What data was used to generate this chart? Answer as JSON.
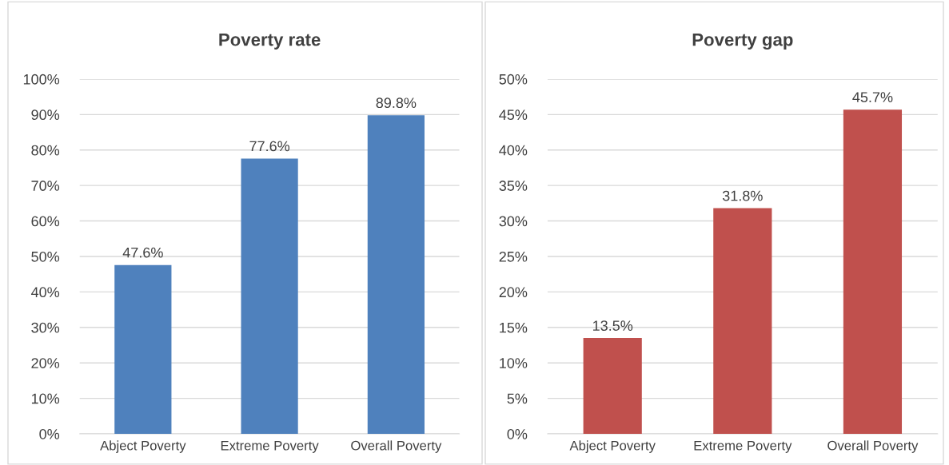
{
  "chart_data": [
    {
      "type": "bar",
      "title": "Poverty rate",
      "categories": [
        "Abject Poverty",
        "Extreme Poverty",
        "Overall Poverty"
      ],
      "series": [
        {
          "color": "#4f81bd",
          "values": [
            47.6,
            77.6,
            89.8
          ]
        }
      ],
      "value_labels": [
        "47.6%",
        "77.6%",
        "89.8%"
      ],
      "ylim": [
        0,
        100
      ],
      "yticks": [
        {
          "value": 0,
          "label": "0%"
        },
        {
          "value": 10,
          "label": "10%"
        },
        {
          "value": 20,
          "label": "20%"
        },
        {
          "value": 30,
          "label": "30%"
        },
        {
          "value": 40,
          "label": "40%"
        },
        {
          "value": 50,
          "label": "50%"
        },
        {
          "value": 60,
          "label": "60%"
        },
        {
          "value": 70,
          "label": "70%"
        },
        {
          "value": 80,
          "label": "80%"
        },
        {
          "value": 90,
          "label": "90%"
        },
        {
          "value": 100,
          "label": "100%"
        }
      ],
      "grid": "y",
      "legend": false
    },
    {
      "type": "bar",
      "title": "Poverty gap",
      "categories": [
        "Abject Poverty",
        "Extreme Poverty",
        "Overall Poverty"
      ],
      "series": [
        {
          "color": "#c0504d",
          "values": [
            13.5,
            31.8,
            45.7
          ]
        }
      ],
      "value_labels": [
        "13.5%",
        "31.8%",
        "45.7%"
      ],
      "ylim": [
        0,
        50
      ],
      "yticks": [
        {
          "value": 0,
          "label": "0%"
        },
        {
          "value": 5,
          "label": "5%"
        },
        {
          "value": 10,
          "label": "10%"
        },
        {
          "value": 15,
          "label": "15%"
        },
        {
          "value": 20,
          "label": "20%"
        },
        {
          "value": 25,
          "label": "25%"
        },
        {
          "value": 30,
          "label": "30%"
        },
        {
          "value": 35,
          "label": "35%"
        },
        {
          "value": 40,
          "label": "40%"
        },
        {
          "value": 45,
          "label": "45%"
        },
        {
          "value": 50,
          "label": "50%"
        }
      ],
      "grid": "y",
      "legend": false
    }
  ]
}
